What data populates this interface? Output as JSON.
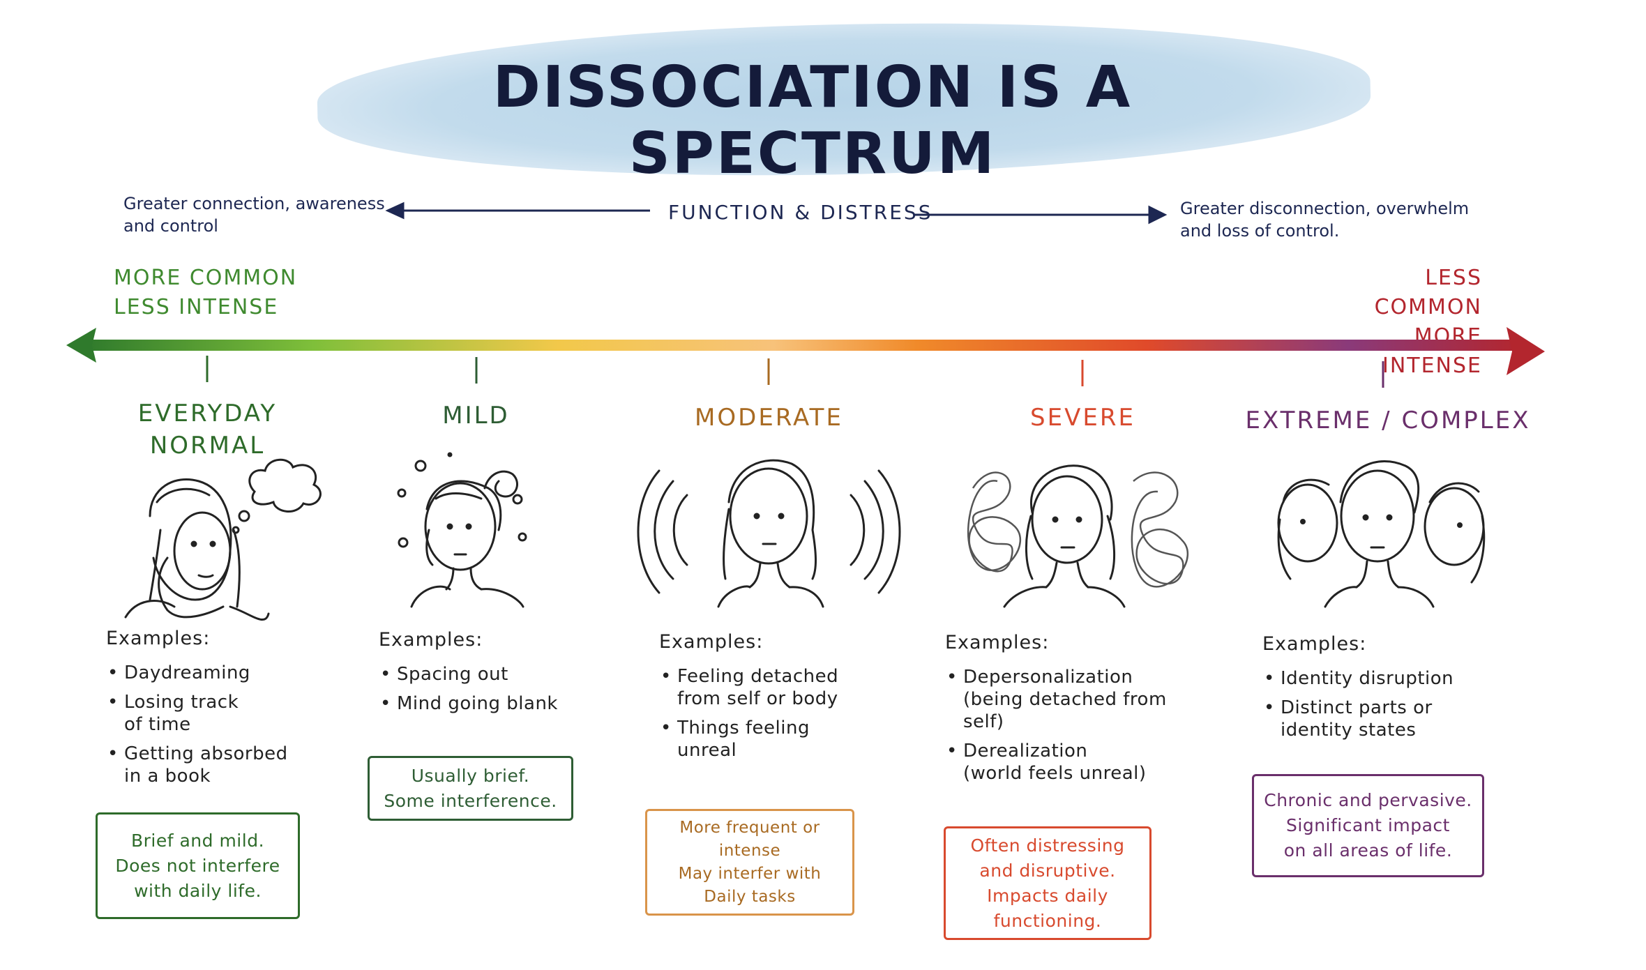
{
  "title": "DISSOCIATION IS A SPECTRUM",
  "axis": {
    "left_note": [
      "Greater connection, awareness",
      "and control"
    ],
    "center_label": "FUNCTION & DISTRESS",
    "right_note": [
      "Greater disconnection, overwhelm",
      "and loss of control."
    ]
  },
  "ends": {
    "left": [
      "MORE COMMON",
      "LESS INTENSE"
    ],
    "right": [
      "LESS COMMON",
      "MORE INTENSE"
    ]
  },
  "colors": {
    "everyday": "#2e6b2a",
    "mild": "#2e5d34",
    "moderate": "#a86a22",
    "severe": "#d84a2e",
    "extreme": "#6a2f6b",
    "navy": "#1d2752",
    "left_end": "#3f8a2f",
    "right_end": "#b3262e"
  },
  "levels": [
    {
      "title": [
        "EVERYDAY",
        "NORMAL"
      ],
      "examples_head": "Examples:",
      "examples": [
        [
          "Daydreaming"
        ],
        [
          "Losing track",
          "of time"
        ],
        [
          "Getting absorbed",
          "in a book"
        ]
      ],
      "box": [
        "Brief and mild.",
        "Does not interfere",
        "with daily life."
      ]
    },
    {
      "title": [
        "MILD"
      ],
      "examples_head": "Examples:",
      "examples": [
        [
          "Spacing out"
        ],
        [
          "Mind going blank"
        ]
      ],
      "box": [
        "Usually brief.",
        "Some interference."
      ]
    },
    {
      "title": [
        "MODERATE"
      ],
      "examples_head": "Examples:",
      "examples": [
        [
          "Feeling detached",
          "from self or body"
        ],
        [
          "Things feeling",
          "unreal"
        ]
      ],
      "box": [
        "More frequent or",
        "intense",
        "May interfer with",
        "Daily tasks"
      ]
    },
    {
      "title": [
        "SEVERE"
      ],
      "examples_head": "Examples:",
      "examples": [
        [
          "Depersonalization",
          "(being detached from self)"
        ],
        [
          "Derealization",
          "(world feels unreal)"
        ]
      ],
      "box": [
        "Often distressing",
        "and disruptive.",
        "Impacts daily",
        "functioning."
      ]
    },
    {
      "title": [
        "EXTREME / COMPLEX"
      ],
      "examples_head": "Examples:",
      "examples": [
        [
          "Identity disruption"
        ],
        [
          "Distinct parts or",
          "identity states"
        ]
      ],
      "box": [
        "Chronic and pervasive.",
        "Significant impact",
        "on all areas of life."
      ]
    }
  ],
  "icons": [
    "thought-bubble-person-icon",
    "messy-bun-person-icon",
    "vibrating-person-icon",
    "scribble-cloud-person-icon",
    "overlapping-faces-icon"
  ]
}
